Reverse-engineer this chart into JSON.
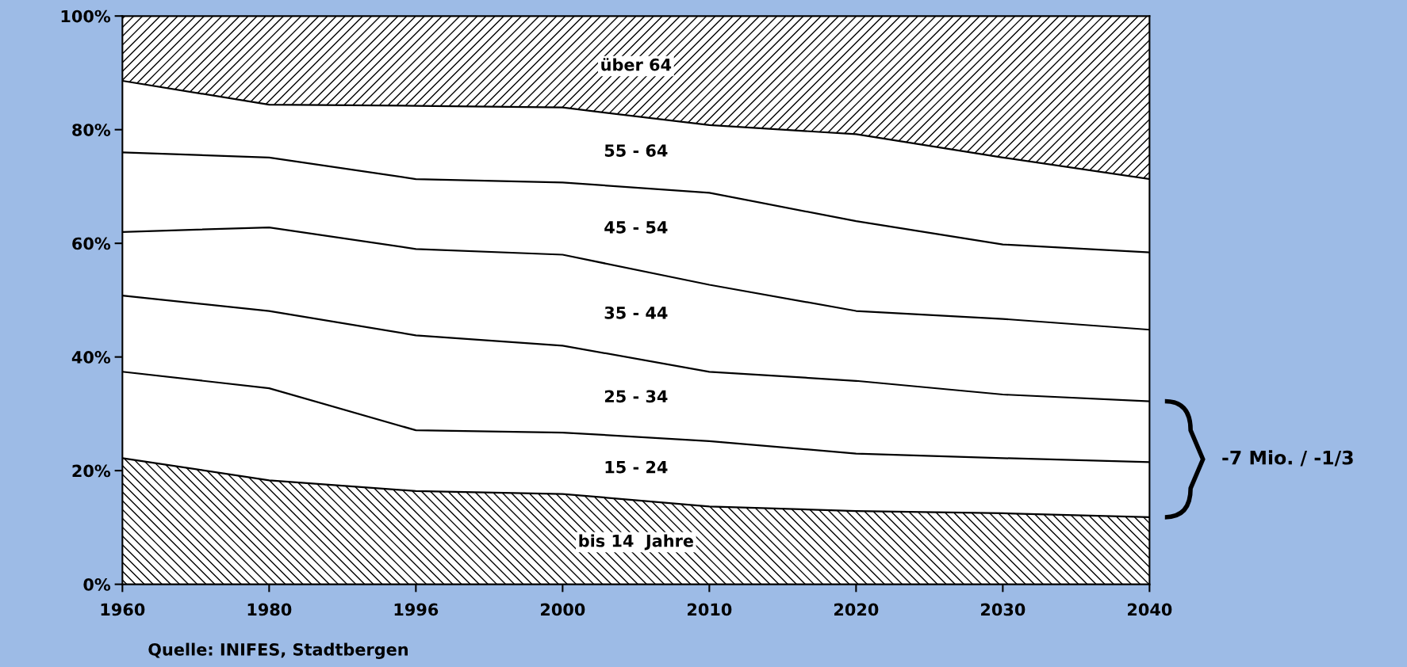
{
  "chart_data": {
    "type": "area",
    "stacked": true,
    "categories": [
      "1960",
      "1980",
      "1996",
      "2000",
      "2010",
      "2020",
      "2030",
      "2040"
    ],
    "series": [
      {
        "name": "bis 14  Jahre",
        "color": "#000000",
        "values": [
          22.2,
          18.3,
          16.4,
          15.9,
          13.7,
          12.9,
          12.5,
          11.8
        ]
      },
      {
        "name": "15 - 24",
        "color": "#ffffff",
        "values": [
          15.2,
          16.2,
          10.7,
          10.8,
          11.5,
          10.1,
          9.7,
          9.7
        ]
      },
      {
        "name": "25 - 34",
        "color": "#ffffff",
        "values": [
          13.4,
          13.6,
          16.7,
          15.3,
          12.2,
          12.8,
          11.2,
          10.7
        ]
      },
      {
        "name": "35 - 44",
        "color": "#ffffff",
        "values": [
          11.2,
          14.7,
          15.2,
          16.0,
          15.3,
          12.3,
          13.3,
          12.6
        ]
      },
      {
        "name": "45 - 54",
        "color": "#ffffff",
        "values": [
          14.0,
          12.3,
          12.3,
          12.7,
          16.2,
          15.8,
          13.1,
          13.6
        ]
      },
      {
        "name": "55 - 64",
        "color": "#ffffff",
        "values": [
          12.6,
          9.3,
          12.9,
          13.2,
          11.9,
          15.3,
          15.3,
          12.9
        ]
      },
      {
        "name": "über 64",
        "color": "#000000",
        "values": [
          11.4,
          15.6,
          15.8,
          16.1,
          19.2,
          20.8,
          24.9,
          28.7
        ]
      }
    ],
    "ylim": [
      0,
      100
    ],
    "yticks": [
      {
        "value": 0,
        "label": "0%"
      },
      {
        "value": 20,
        "label": "20%"
      },
      {
        "value": 40,
        "label": "40%"
      },
      {
        "value": 60,
        "label": "60%"
      },
      {
        "value": 80,
        "label": "80%"
      },
      {
        "value": 100,
        "label": "100%"
      }
    ],
    "annotations": [
      "Quelle: INIFES, Stadtbergen",
      "-7 Mio. / -1/3"
    ]
  }
}
